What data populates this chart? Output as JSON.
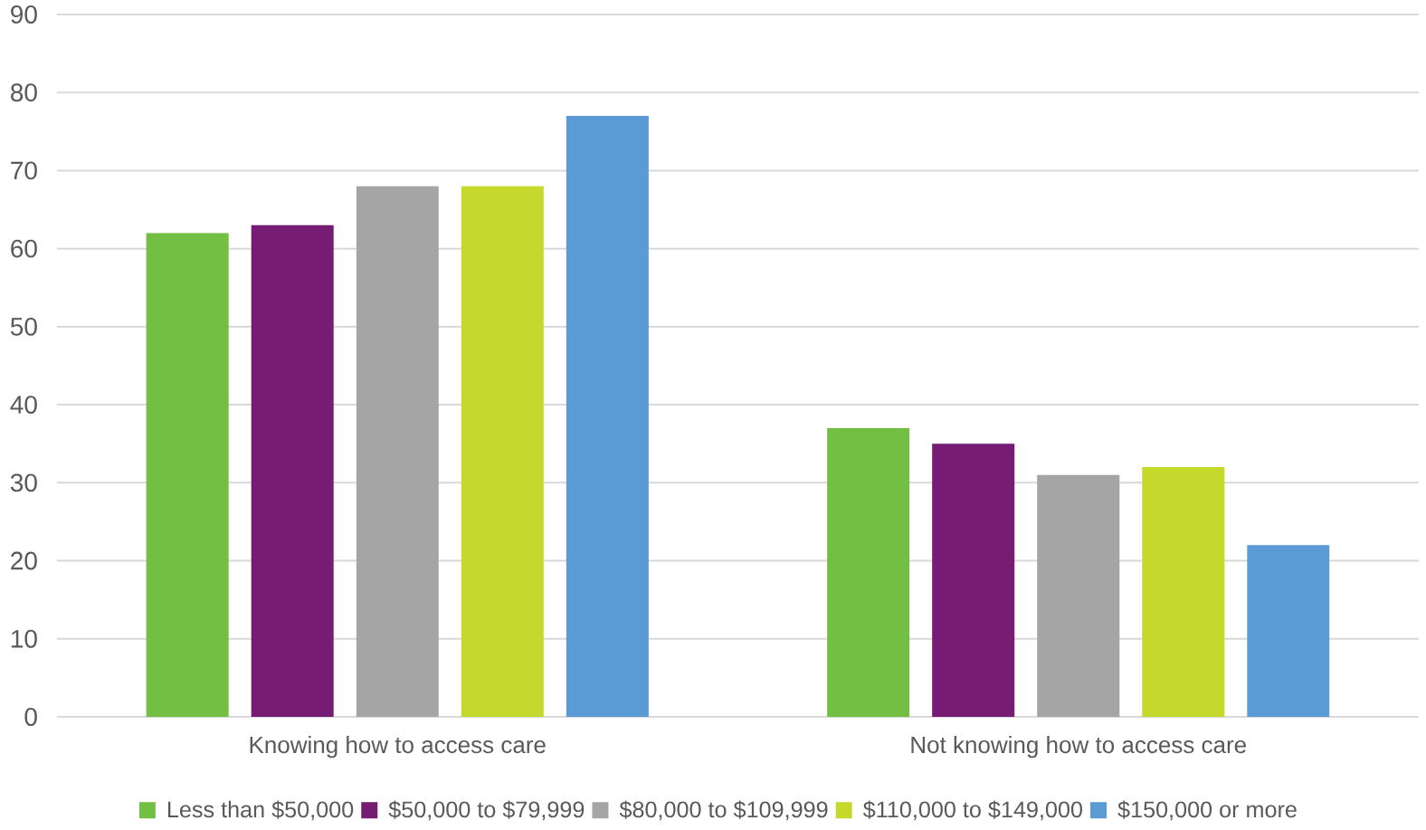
{
  "chart_data": {
    "type": "bar",
    "categories": [
      "Knowing how to access care",
      "Not knowing how to access care"
    ],
    "series": [
      {
        "name": "Less than $50,000",
        "color": "#72bf44",
        "values": [
          62,
          37
        ]
      },
      {
        "name": "$50,000 to $79,999",
        "color": "#761d73",
        "values": [
          63,
          35
        ]
      },
      {
        "name": "$80,000 to $109,999",
        "color": "#a5a5a5",
        "values": [
          68,
          31
        ]
      },
      {
        "name": "$110,000 to $149,000",
        "color": "#c5d92d",
        "values": [
          68,
          32
        ]
      },
      {
        "name": "$150,000 or more",
        "color": "#5b9bd5",
        "values": [
          77,
          22
        ]
      }
    ],
    "ylim": [
      0,
      90
    ],
    "yticks": [
      0,
      10,
      20,
      30,
      40,
      50,
      60,
      70,
      80,
      90
    ],
    "grid": "y",
    "legend": "bottom"
  }
}
